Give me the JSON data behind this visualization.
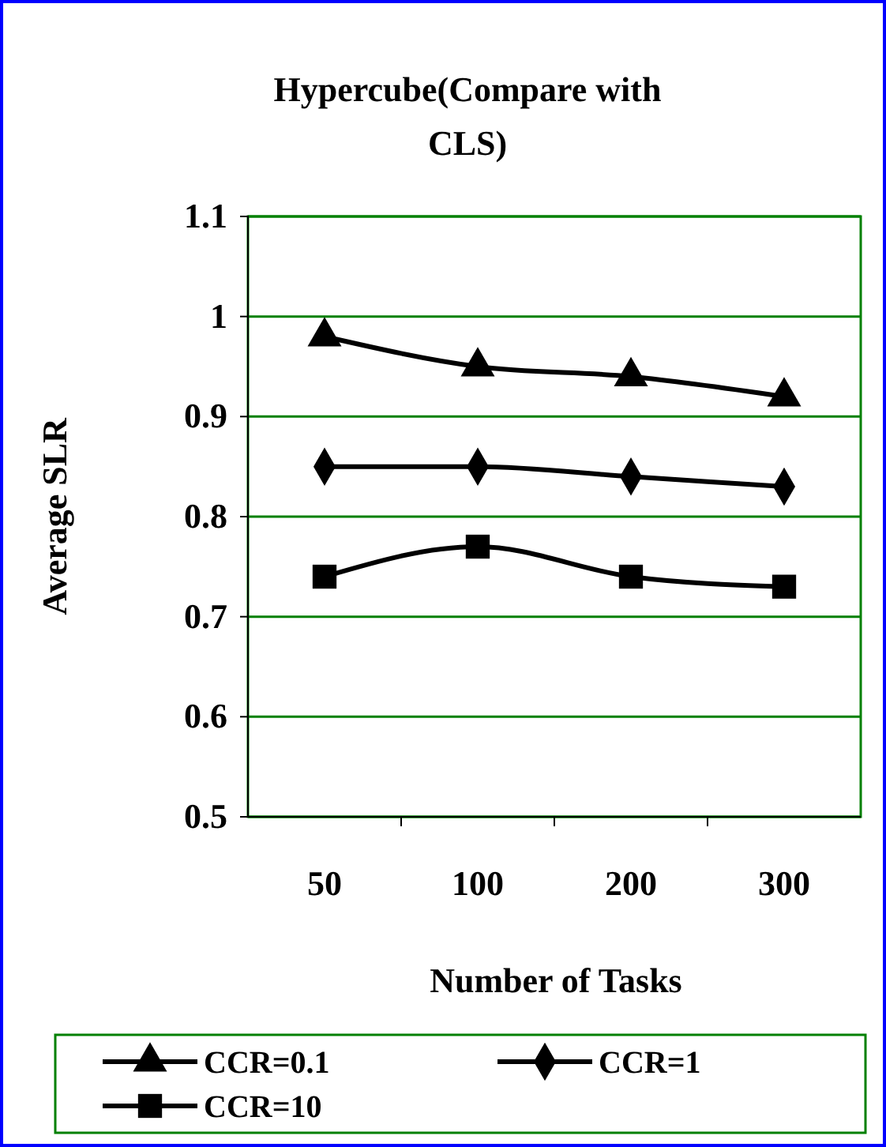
{
  "chart_data": {
    "type": "line",
    "title": "Hypercube(Compare with CLS)",
    "xlabel": "Number of Tasks",
    "ylabel": "Average SLR",
    "categories": [
      "50",
      "100",
      "200",
      "300"
    ],
    "ylim": [
      0.5,
      1.1
    ],
    "yticks": [
      0.5,
      0.6,
      0.7,
      0.8,
      0.9,
      1,
      1.1
    ],
    "grid": "y",
    "legend": "bottom",
    "series": [
      {
        "name": "CCR=0.1",
        "color": "#000000",
        "marker": "triangle",
        "values": [
          0.98,
          0.95,
          0.94,
          0.92
        ]
      },
      {
        "name": "CCR=1",
        "color": "#000000",
        "marker": "diamond",
        "values": [
          0.85,
          0.85,
          0.84,
          0.83
        ]
      },
      {
        "name": "CCR=10",
        "color": "#000000",
        "marker": "square",
        "values": [
          0.74,
          0.77,
          0.74,
          0.73
        ]
      }
    ]
  }
}
